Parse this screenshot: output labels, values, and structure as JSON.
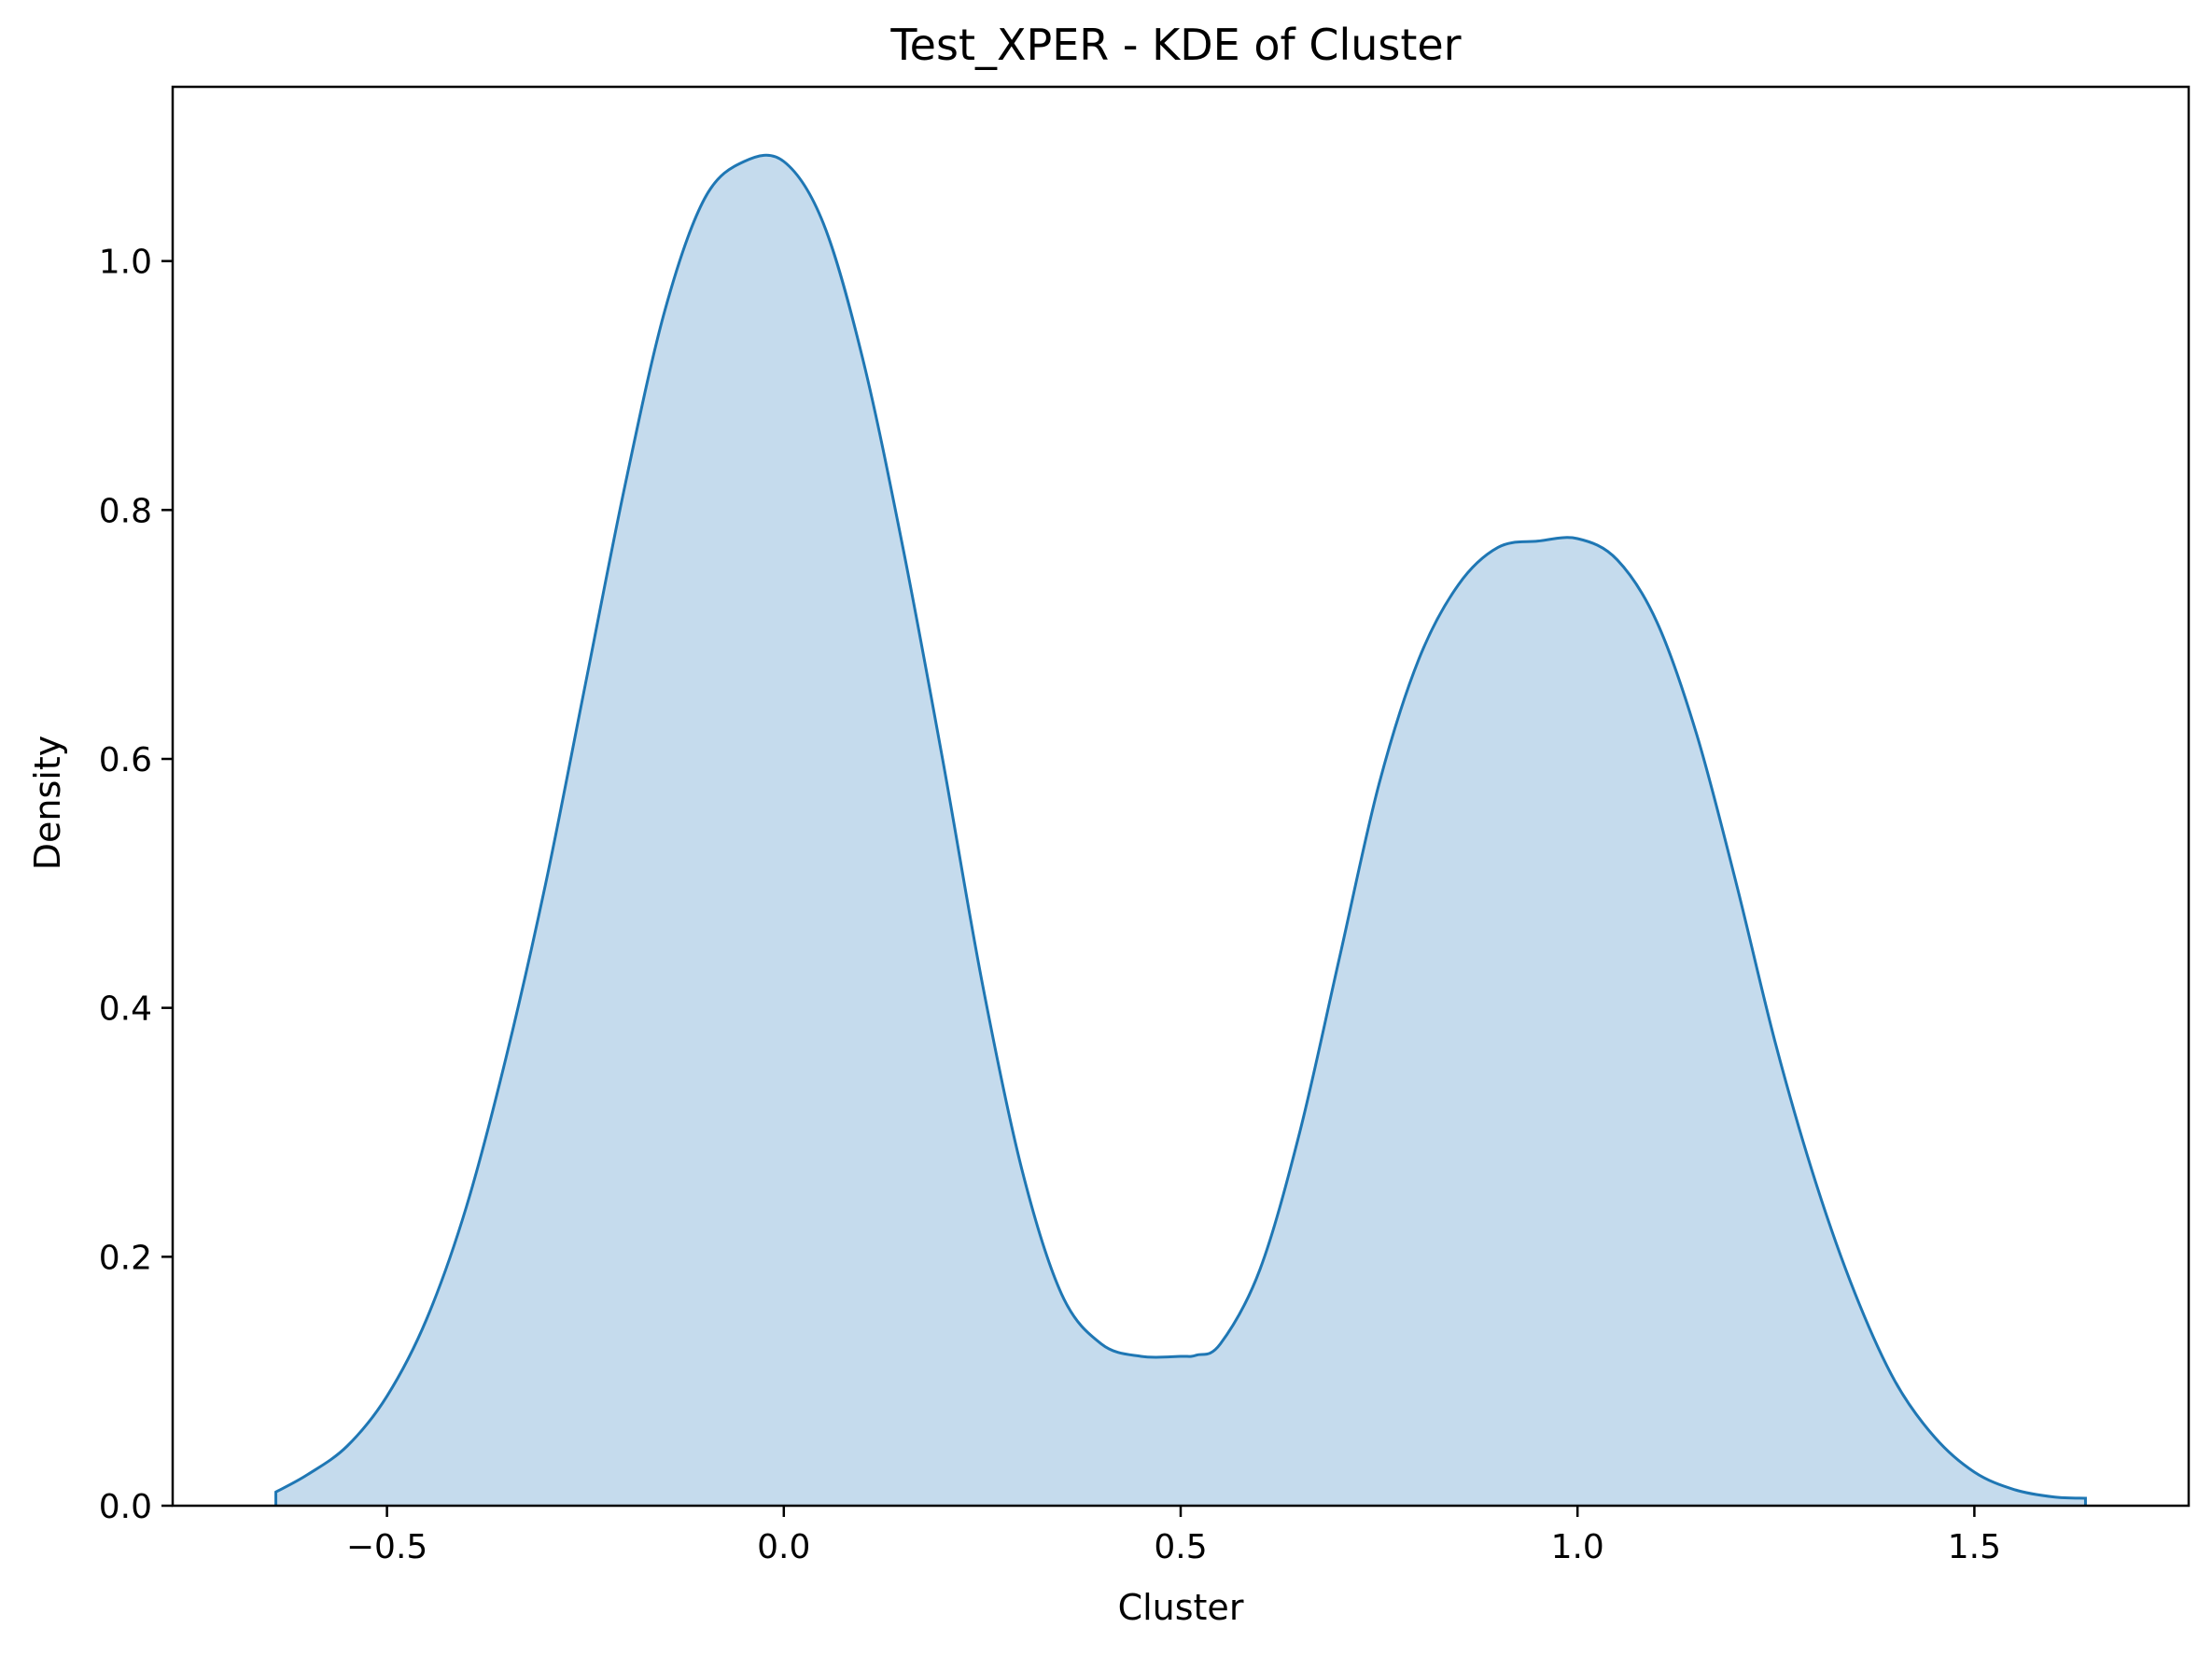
{
  "chart_data": {
    "type": "area",
    "title": "Test_XPER - KDE of Cluster",
    "xlabel": "Cluster",
    "ylabel": "Density",
    "xlim": [
      -0.77,
      1.77
    ],
    "ylim": [
      0.0,
      1.14
    ],
    "x_ticks": [
      -0.5,
      0.0,
      0.5,
      1.0,
      1.5
    ],
    "x_tick_labels": [
      "−0.5",
      "0.0",
      "0.5",
      "1.0",
      "1.5"
    ],
    "y_ticks": [
      0.0,
      0.2,
      0.4,
      0.6,
      0.8,
      1.0
    ],
    "y_tick_labels": [
      "0.0",
      "0.2",
      "0.4",
      "0.6",
      "0.8",
      "1.0"
    ],
    "grid": false,
    "legend": "none",
    "series": [
      {
        "x": [
          -0.64,
          -0.6,
          -0.55,
          -0.5,
          -0.45,
          -0.4,
          -0.35,
          -0.3,
          -0.25,
          -0.2,
          -0.15,
          -0.1,
          -0.05,
          0.0,
          0.05,
          0.1,
          0.15,
          0.2,
          0.25,
          0.3,
          0.35,
          0.4,
          0.45,
          0.5,
          0.52,
          0.55,
          0.6,
          0.65,
          0.7,
          0.75,
          0.8,
          0.85,
          0.9,
          0.95,
          1.0,
          1.05,
          1.1,
          1.15,
          1.2,
          1.25,
          1.3,
          1.35,
          1.4,
          1.45,
          1.5,
          1.55,
          1.6,
          1.64
        ],
        "y": [
          0.011,
          0.025,
          0.048,
          0.088,
          0.15,
          0.24,
          0.36,
          0.5,
          0.66,
          0.82,
          0.96,
          1.05,
          1.08,
          1.08,
          1.03,
          0.92,
          0.77,
          0.6,
          0.42,
          0.27,
          0.17,
          0.13,
          0.12,
          0.12,
          0.121,
          0.13,
          0.19,
          0.3,
          0.44,
          0.58,
          0.68,
          0.74,
          0.77,
          0.775,
          0.777,
          0.76,
          0.71,
          0.62,
          0.5,
          0.37,
          0.26,
          0.17,
          0.1,
          0.055,
          0.027,
          0.013,
          0.007,
          0.006
        ]
      }
    ],
    "colors": {
      "line": "#1f77b4",
      "fill": "#c5dbed",
      "axes": "#000000"
    }
  }
}
